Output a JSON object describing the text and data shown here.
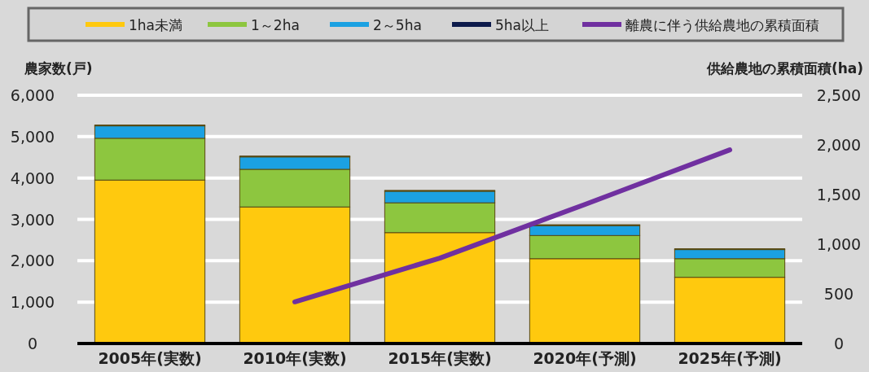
{
  "chart_data": {
    "type": "bar",
    "stacked": true,
    "ylabel": "農家数(戸)",
    "y2label": "供給農地の累積面積(ha)",
    "categories": [
      "2005年(実数)",
      "2010年(実数)",
      "2015年(実数)",
      "2020年(予測)",
      "2025年(予測)"
    ],
    "series": [
      {
        "name": "1ha未満",
        "color": "#ffc90e",
        "values": [
          3950,
          3300,
          2680,
          2050,
          1600
        ]
      },
      {
        "name": "1～2ha",
        "color": "#8dc63f",
        "values": [
          1010,
          910,
          720,
          560,
          450
        ]
      },
      {
        "name": "2～5ha",
        "color": "#1ba1e2",
        "values": [
          300,
          300,
          280,
          240,
          220
        ]
      },
      {
        "name": "5ha以上",
        "color": "#0d1b4c",
        "values": [
          20,
          20,
          20,
          20,
          20
        ]
      },
      {
        "name": "離農に伴う供給農地の累積面積",
        "type": "line",
        "axis": "y2",
        "color": "#7030a0",
        "values": [
          null,
          420,
          860,
          1400,
          1950
        ]
      }
    ],
    "ylim": [
      0,
      6000
    ],
    "yticks": [
      {
        "value": 0,
        "label": "0"
      },
      {
        "value": 1000,
        "label": "1,000"
      },
      {
        "value": 2000,
        "label": "2,000"
      },
      {
        "value": 3000,
        "label": "3,000"
      },
      {
        "value": 4000,
        "label": "4,000"
      },
      {
        "value": 5000,
        "label": "5,000"
      },
      {
        "value": 6000,
        "label": "6,000"
      }
    ],
    "y2lim": [
      0,
      2500
    ],
    "y2ticks": [
      {
        "value": 0,
        "label": "0"
      },
      {
        "value": 500,
        "label": "500"
      },
      {
        "value": 1000,
        "label": "1,000"
      },
      {
        "value": 1500,
        "label": "1,500"
      },
      {
        "value": 2000,
        "label": "2,000"
      },
      {
        "value": 2500,
        "label": "2,500"
      }
    ],
    "grid": "y",
    "legend": "top"
  }
}
